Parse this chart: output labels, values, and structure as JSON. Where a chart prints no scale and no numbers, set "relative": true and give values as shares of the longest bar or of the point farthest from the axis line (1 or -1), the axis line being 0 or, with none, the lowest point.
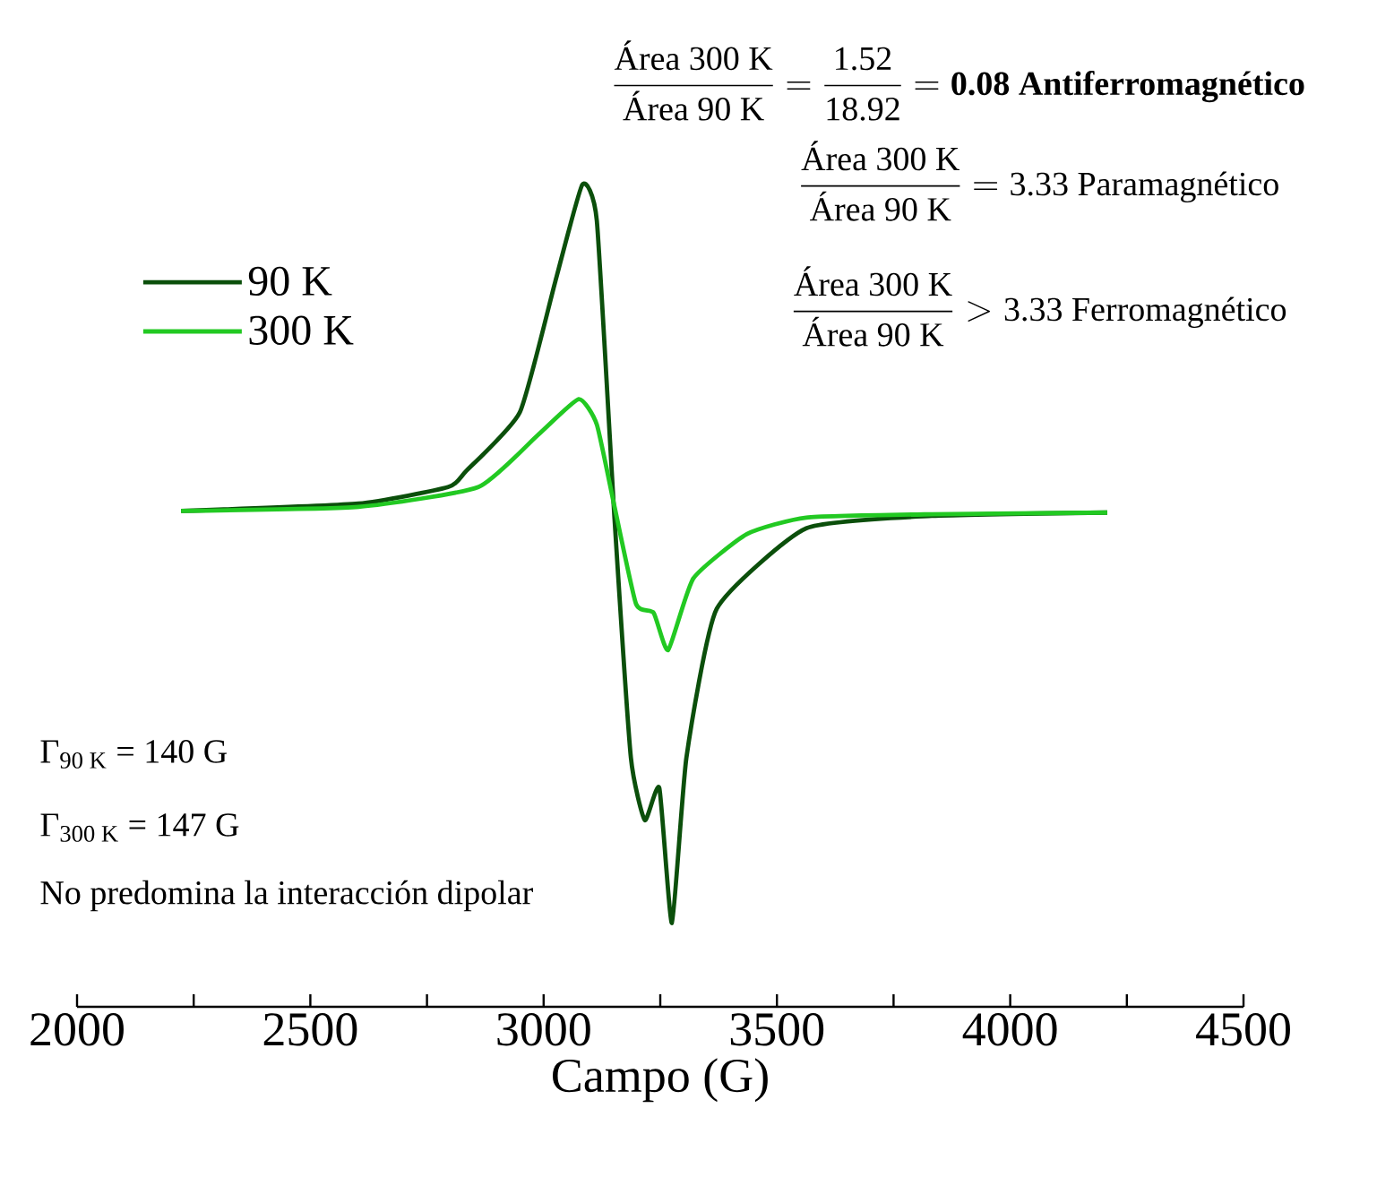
{
  "chart_data": {
    "type": "line",
    "relative": true,
    "xlabel": "Campo (G)",
    "xlim": [
      2000,
      4500
    ],
    "xticks": [
      2000,
      {
        "value": 2250,
        "label": null
      },
      2500,
      {
        "value": 2750,
        "label": null
      },
      3000,
      {
        "value": 3250,
        "label": null
      },
      3500,
      {
        "value": 3750,
        "label": null
      },
      4000,
      {
        "value": 4250,
        "label": null
      },
      4500
    ],
    "legend": "top left",
    "series": [
      {
        "name": "90 K",
        "color": "#0b4f0b",
        "x": [
          2223,
          2603,
          2795,
          2833,
          2949,
          3025,
          3083,
          3114,
          3152,
          3187,
          3217,
          3248,
          3275,
          3306,
          3371,
          3563,
          3832,
          4208
        ],
        "values": [
          0.603,
          0.612,
          0.632,
          0.651,
          0.723,
          0.882,
          1.0,
          0.956,
          0.593,
          0.303,
          0.227,
          0.266,
          0.102,
          0.303,
          0.484,
          0.582,
          0.597,
          0.601
        ]
      },
      {
        "name": "300 K",
        "color": "#22c922",
        "x": [
          2223,
          2603,
          2860,
          2987,
          3075,
          3114,
          3152,
          3198,
          3236,
          3267,
          3321,
          3436,
          3563,
          3832,
          4208
        ],
        "values": [
          0.603,
          0.608,
          0.632,
          0.695,
          0.739,
          0.708,
          0.608,
          0.49,
          0.479,
          0.434,
          0.521,
          0.575,
          0.595,
          0.599,
          0.601
        ]
      }
    ],
    "annotations": [
      "\\frac{\\text{Área 300 K}}{\\text{Área 90 K}}=\\frac{\\text{1.52}}{\\text{18.92}}=\\textbf{0.08 Antiferromagnético}",
      "\\frac{\\text{Área 300 K}}{\\text{Área 90 K}}=\\text{3.33 Paramagnético}",
      "\\frac{\\text{Área 300 K}}{\\text{Área 90 K}}>\\text{3.33 Ferromagnético}",
      "Γ$_{90 K}$ = 140 G",
      "Γ$_{300 K}$ = 147 G",
      "No predomina la interacción dipolar"
    ]
  }
}
